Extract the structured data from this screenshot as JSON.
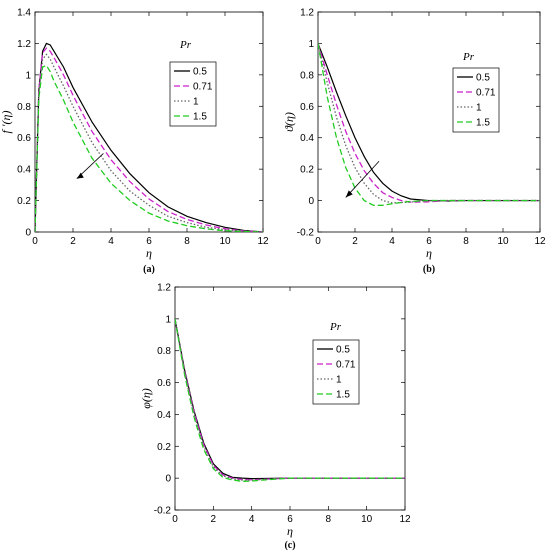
{
  "chart_data": [
    {
      "type": "line",
      "caption": "(a)",
      "xlabel": "η",
      "ylabel": "f ′(η)",
      "xlim": [
        0,
        12
      ],
      "ylim": [
        0,
        1.4
      ],
      "xticks": [
        0,
        2,
        4,
        6,
        8,
        10,
        12
      ],
      "yticks": [
        0,
        0.2,
        0.4,
        0.6,
        0.8,
        1,
        1.2,
        1.4
      ],
      "ytick_labels": [
        "0",
        "0.2",
        "0.4",
        "0.6",
        "0.8",
        "1",
        "1.2",
        "1.4"
      ],
      "grid": false,
      "legend": {
        "title": "Pr",
        "position": "upper-right"
      },
      "annotation": "arrow pointing down-left across curves (increasing Pr)",
      "series": [
        {
          "name": "0.5",
          "color": "#000000",
          "dash": "solid",
          "points": [
            [
              0,
              0
            ],
            [
              0.2,
              0.9
            ],
            [
              0.4,
              1.15
            ],
            [
              0.6,
              1.2
            ],
            [
              0.8,
              1.19
            ],
            [
              1,
              1.15
            ],
            [
              1.5,
              1.05
            ],
            [
              2,
              0.92
            ],
            [
              3,
              0.7
            ],
            [
              4,
              0.52
            ],
            [
              5,
              0.37
            ],
            [
              6,
              0.25
            ],
            [
              7,
              0.16
            ],
            [
              8,
              0.1
            ],
            [
              9,
              0.06
            ],
            [
              10,
              0.03
            ],
            [
              11,
              0.01
            ],
            [
              12,
              0
            ]
          ]
        },
        {
          "name": "0.71",
          "color": "#cc22cc",
          "dash": "dash",
          "points": [
            [
              0,
              0
            ],
            [
              0.2,
              0.9
            ],
            [
              0.4,
              1.14
            ],
            [
              0.6,
              1.17
            ],
            [
              0.8,
              1.15
            ],
            [
              1,
              1.11
            ],
            [
              1.5,
              1.0
            ],
            [
              2,
              0.87
            ],
            [
              3,
              0.64
            ],
            [
              4,
              0.46
            ],
            [
              5,
              0.32
            ],
            [
              6,
              0.21
            ],
            [
              7,
              0.13
            ],
            [
              8,
              0.08
            ],
            [
              9,
              0.045
            ],
            [
              10,
              0.02
            ],
            [
              11,
              0.007
            ],
            [
              12,
              0
            ]
          ]
        },
        {
          "name": "1",
          "color": "#666666",
          "dash": "dot",
          "points": [
            [
              0,
              0
            ],
            [
              0.2,
              0.88
            ],
            [
              0.4,
              1.1
            ],
            [
              0.6,
              1.13
            ],
            [
              0.8,
              1.1
            ],
            [
              1,
              1.05
            ],
            [
              1.5,
              0.93
            ],
            [
              2,
              0.8
            ],
            [
              3,
              0.57
            ],
            [
              4,
              0.39
            ],
            [
              5,
              0.26
            ],
            [
              6,
              0.17
            ],
            [
              7,
              0.1
            ],
            [
              8,
              0.06
            ],
            [
              9,
              0.03
            ],
            [
              10,
              0.015
            ],
            [
              11,
              0.005
            ],
            [
              12,
              0
            ]
          ]
        },
        {
          "name": "1.5",
          "color": "#22cc22",
          "dash": "dash",
          "points": [
            [
              0,
              0
            ],
            [
              0.2,
              0.85
            ],
            [
              0.4,
              1.05
            ],
            [
              0.6,
              1.06
            ],
            [
              0.8,
              1.02
            ],
            [
              1,
              0.96
            ],
            [
              1.5,
              0.84
            ],
            [
              2,
              0.7
            ],
            [
              3,
              0.47
            ],
            [
              4,
              0.31
            ],
            [
              5,
              0.2
            ],
            [
              6,
              0.12
            ],
            [
              7,
              0.07
            ],
            [
              8,
              0.04
            ],
            [
              9,
              0.02
            ],
            [
              10,
              0.008
            ],
            [
              11,
              0.003
            ],
            [
              12,
              0
            ]
          ]
        }
      ]
    },
    {
      "type": "line",
      "caption": "(b)",
      "xlabel": "η",
      "ylabel": "ϑ(η)",
      "xlim": [
        0,
        12
      ],
      "ylim": [
        -0.2,
        1.2
      ],
      "xticks": [
        0,
        2,
        4,
        6,
        8,
        10,
        12
      ],
      "yticks": [
        -0.2,
        0,
        0.2,
        0.4,
        0.6,
        0.8,
        1,
        1.2
      ],
      "ytick_labels": [
        "-0.2",
        "0",
        "0.2",
        "0.4",
        "0.6",
        "0.8",
        "1",
        "1.2"
      ],
      "grid": false,
      "legend": {
        "title": "Pr",
        "position": "upper-right"
      },
      "annotation": "arrow pointing down-left across curves (increasing Pr)",
      "series": [
        {
          "name": "0.5",
          "color": "#000000",
          "dash": "solid",
          "points": [
            [
              0,
              1
            ],
            [
              0.5,
              0.85
            ],
            [
              1,
              0.69
            ],
            [
              1.5,
              0.54
            ],
            [
              2,
              0.4
            ],
            [
              2.5,
              0.28
            ],
            [
              3,
              0.18
            ],
            [
              3.5,
              0.11
            ],
            [
              4,
              0.06
            ],
            [
              4.5,
              0.03
            ],
            [
              5,
              0.01
            ],
            [
              6,
              0
            ],
            [
              7,
              -0.003
            ],
            [
              8,
              0
            ],
            [
              12,
              0
            ]
          ]
        },
        {
          "name": "0.71",
          "color": "#cc22cc",
          "dash": "dash",
          "points": [
            [
              0,
              1
            ],
            [
              0.5,
              0.8
            ],
            [
              1,
              0.61
            ],
            [
              1.5,
              0.44
            ],
            [
              2,
              0.3
            ],
            [
              2.5,
              0.19
            ],
            [
              3,
              0.11
            ],
            [
              3.5,
              0.05
            ],
            [
              4,
              0.02
            ],
            [
              4.5,
              0
            ],
            [
              5,
              -0.01
            ],
            [
              6,
              -0.008
            ],
            [
              7,
              0
            ],
            [
              12,
              0
            ]
          ]
        },
        {
          "name": "1",
          "color": "#666666",
          "dash": "dot",
          "points": [
            [
              0,
              1
            ],
            [
              0.5,
              0.75
            ],
            [
              1,
              0.53
            ],
            [
              1.5,
              0.35
            ],
            [
              2,
              0.21
            ],
            [
              2.5,
              0.11
            ],
            [
              3,
              0.04
            ],
            [
              3.5,
              0
            ],
            [
              4,
              -0.015
            ],
            [
              5,
              -0.01
            ],
            [
              6,
              0
            ],
            [
              12,
              0
            ]
          ]
        },
        {
          "name": "1.5",
          "color": "#22cc22",
          "dash": "dash",
          "points": [
            [
              0,
              1
            ],
            [
              0.5,
              0.66
            ],
            [
              1,
              0.4
            ],
            [
              1.5,
              0.21
            ],
            [
              2,
              0.08
            ],
            [
              2.5,
              0
            ],
            [
              3,
              -0.03
            ],
            [
              3.5,
              -0.03
            ],
            [
              4,
              -0.02
            ],
            [
              5,
              -0.005
            ],
            [
              6,
              0
            ],
            [
              12,
              0
            ]
          ]
        }
      ]
    },
    {
      "type": "line",
      "caption": "(c)",
      "xlabel": "η",
      "ylabel": "φ(η)",
      "xlim": [
        0,
        12
      ],
      "ylim": [
        -0.2,
        1.2
      ],
      "xticks": [
        0,
        2,
        4,
        6,
        8,
        10,
        12
      ],
      "yticks": [
        -0.2,
        0,
        0.2,
        0.4,
        0.6,
        0.8,
        1,
        1.2
      ],
      "ytick_labels": [
        "-0.2",
        "0",
        "0.2",
        "0.4",
        "0.6",
        "0.8",
        "1",
        "1.2"
      ],
      "grid": false,
      "legend": {
        "title": "Pr",
        "position": "upper-right"
      },
      "series": [
        {
          "name": "0.5",
          "color": "#000000",
          "dash": "solid",
          "points": [
            [
              0,
              1
            ],
            [
              0.5,
              0.68
            ],
            [
              1,
              0.42
            ],
            [
              1.5,
              0.22
            ],
            [
              2,
              0.09
            ],
            [
              2.5,
              0.03
            ],
            [
              3,
              0.005
            ],
            [
              3.5,
              0
            ],
            [
              4,
              -0.003
            ],
            [
              6,
              0
            ],
            [
              8,
              0
            ],
            [
              12,
              0
            ]
          ]
        },
        {
          "name": "0.71",
          "color": "#cc22cc",
          "dash": "dash",
          "points": [
            [
              0,
              1
            ],
            [
              0.5,
              0.67
            ],
            [
              1,
              0.41
            ],
            [
              1.5,
              0.21
            ],
            [
              2,
              0.08
            ],
            [
              2.5,
              0.02
            ],
            [
              3,
              0
            ],
            [
              3.5,
              -0.008
            ],
            [
              4,
              -0.01
            ],
            [
              5,
              -0.005
            ],
            [
              6,
              0
            ],
            [
              12,
              0
            ]
          ]
        },
        {
          "name": "1",
          "color": "#666666",
          "dash": "dot",
          "points": [
            [
              0,
              1
            ],
            [
              0.5,
              0.66
            ],
            [
              1,
              0.4
            ],
            [
              1.5,
              0.2
            ],
            [
              2,
              0.07
            ],
            [
              2.5,
              0.015
            ],
            [
              3,
              -0.005
            ],
            [
              3.5,
              -0.012
            ],
            [
              4,
              -0.012
            ],
            [
              5,
              -0.005
            ],
            [
              6,
              0
            ],
            [
              12,
              0
            ]
          ]
        },
        {
          "name": "1.5",
          "color": "#22cc22",
          "dash": "dash",
          "points": [
            [
              0,
              1
            ],
            [
              0.5,
              0.65
            ],
            [
              1,
              0.38
            ],
            [
              1.5,
              0.18
            ],
            [
              2,
              0.06
            ],
            [
              2.5,
              0.005
            ],
            [
              3,
              -0.012
            ],
            [
              3.5,
              -0.02
            ],
            [
              4,
              -0.018
            ],
            [
              5,
              -0.008
            ],
            [
              6,
              0
            ],
            [
              12,
              0
            ]
          ]
        }
      ]
    }
  ]
}
